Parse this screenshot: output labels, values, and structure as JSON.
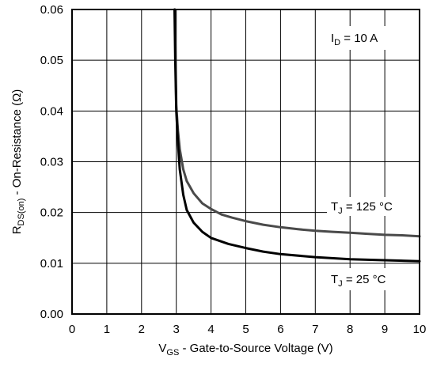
{
  "chart_data": {
    "type": "line",
    "xlabel": {
      "main": "V",
      "sub": "GS",
      "rest": " - Gate-to-Source Voltage (V)"
    },
    "ylabel": {
      "main": "R",
      "sub": "DS(on)",
      "rest": " - On-Resistance (Ω)"
    },
    "xlim": [
      0,
      10
    ],
    "ylim": [
      0,
      0.06
    ],
    "x_ticks": [
      "0",
      "1",
      "2",
      "3",
      "4",
      "5",
      "6",
      "7",
      "8",
      "9",
      "10"
    ],
    "y_ticks": [
      "0.00",
      "0.01",
      "0.02",
      "0.03",
      "0.04",
      "0.05",
      "0.06"
    ],
    "grid": true,
    "condition": {
      "main": "I",
      "sub": "D",
      "rest": " = 10 A"
    },
    "series": [
      {
        "name": {
          "main": "T",
          "sub": "J",
          "rest": " = 125 °C"
        },
        "color": "#4a4a4a",
        "x": [
          2.96,
          2.98,
          3.0,
          3.05,
          3.1,
          3.2,
          3.3,
          3.5,
          3.75,
          4.0,
          4.3,
          4.6,
          5.0,
          5.5,
          6.0,
          6.5,
          7.0,
          7.5,
          8.0,
          8.5,
          9.0,
          9.5,
          10.0
        ],
        "y": [
          0.06,
          0.05,
          0.041,
          0.036,
          0.0325,
          0.0285,
          0.0262,
          0.0238,
          0.0218,
          0.0207,
          0.0196,
          0.019,
          0.0183,
          0.0176,
          0.0171,
          0.0167,
          0.0164,
          0.0162,
          0.016,
          0.0158,
          0.0156,
          0.0155,
          0.0153
        ]
      },
      {
        "name": {
          "main": "T",
          "sub": "J",
          "rest": " = 25 °C"
        },
        "color": "#000000",
        "x": [
          2.95,
          2.97,
          3.0,
          3.05,
          3.1,
          3.2,
          3.3,
          3.5,
          3.75,
          4.0,
          4.5,
          5.0,
          5.5,
          6.0,
          7.0,
          8.0,
          9.0,
          10.0
        ],
        "y": [
          0.06,
          0.05,
          0.04,
          0.0335,
          0.0285,
          0.0235,
          0.0205,
          0.018,
          0.0162,
          0.015,
          0.0138,
          0.013,
          0.0123,
          0.0118,
          0.0112,
          0.0108,
          0.0106,
          0.0104
        ]
      }
    ]
  }
}
